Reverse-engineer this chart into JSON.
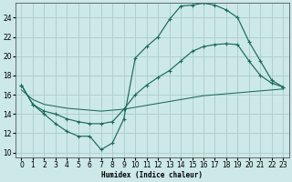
{
  "xlabel": "Humidex (Indice chaleur)",
  "x_ticks": [
    0,
    1,
    2,
    3,
    4,
    5,
    6,
    7,
    8,
    9,
    10,
    11,
    12,
    13,
    14,
    15,
    16,
    17,
    18,
    19,
    20,
    21,
    22,
    23
  ],
  "y_ticks": [
    10,
    12,
    14,
    16,
    18,
    20,
    22,
    24
  ],
  "xlim": [
    -0.5,
    23.5
  ],
  "ylim": [
    9.5,
    25.5
  ],
  "bg_color": "#cce8e8",
  "grid_color": "#aacccc",
  "line_color": "#1a6b5a",
  "curve1_x": [
    0,
    1,
    2,
    3,
    4,
    5,
    6,
    7,
    8,
    9,
    10,
    11,
    12,
    13,
    14,
    15,
    16,
    17,
    18,
    19,
    20,
    21,
    22,
    23
  ],
  "curve1_y": [
    17.0,
    15.0,
    14.0,
    13.0,
    12.2,
    11.7,
    11.7,
    10.3,
    11.0,
    13.5,
    19.8,
    21.0,
    22.0,
    23.8,
    25.2,
    25.3,
    25.5,
    25.3,
    24.8,
    24.0,
    21.5,
    19.5,
    17.5,
    16.8
  ],
  "curve2_x": [
    0,
    1,
    2,
    3,
    4,
    5,
    6,
    7,
    8,
    9,
    10,
    11,
    12,
    13,
    14,
    15,
    16,
    17,
    18,
    19,
    20,
    21,
    22,
    23
  ],
  "curve2_y": [
    17.0,
    15.0,
    14.3,
    14.0,
    13.5,
    13.2,
    13.0,
    13.0,
    13.2,
    14.5,
    16.0,
    17.0,
    17.8,
    18.5,
    19.5,
    20.5,
    21.0,
    21.2,
    21.3,
    21.2,
    19.5,
    18.0,
    17.2,
    16.8
  ],
  "curve3_x": [
    0,
    1,
    2,
    3,
    4,
    5,
    6,
    7,
    8,
    9,
    10,
    11,
    12,
    13,
    14,
    15,
    16,
    17,
    18,
    19,
    20,
    21,
    22,
    23
  ],
  "curve3_y": [
    16.5,
    15.5,
    15.0,
    14.8,
    14.6,
    14.5,
    14.4,
    14.3,
    14.4,
    14.5,
    14.7,
    14.9,
    15.1,
    15.3,
    15.5,
    15.7,
    15.9,
    16.0,
    16.1,
    16.2,
    16.3,
    16.4,
    16.5,
    16.6
  ]
}
